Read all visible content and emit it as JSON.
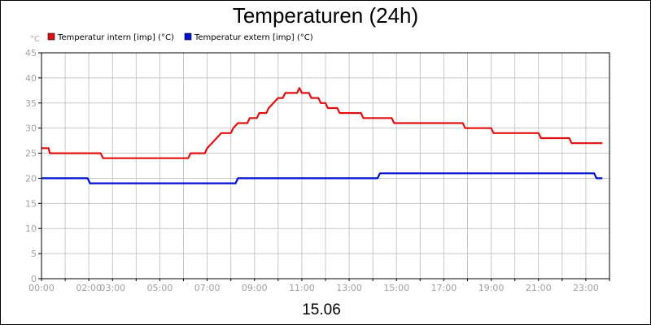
{
  "chart_data": {
    "type": "line",
    "title": "Temperaturen (24h)",
    "ylabel": "°C",
    "xlabel": "15.06",
    "ylim": [
      0,
      45
    ],
    "y_ticks": [
      "0",
      "5",
      "10",
      "15",
      "20",
      "25",
      "30",
      "35",
      "40",
      "45"
    ],
    "x_tick_labels": [
      "00:00",
      "02:00",
      "03:00",
      "05:00",
      "07:00",
      "09:00",
      "11:00",
      "13:00",
      "15:00",
      "17:00",
      "19:00",
      "21:00",
      "23:00"
    ],
    "x_tick_hours": [
      0,
      2,
      3,
      5,
      7,
      9,
      11,
      13,
      15,
      17,
      19,
      21,
      23
    ],
    "x_range_hours": [
      0,
      24
    ],
    "grid": true,
    "legend_position": "top-left",
    "series": [
      {
        "name": "Temperatur intern [imp] (°C)",
        "color": "#e01010",
        "points": [
          [
            0,
            26
          ],
          [
            0.3,
            26
          ],
          [
            0.35,
            25
          ],
          [
            2.5,
            25
          ],
          [
            2.6,
            24
          ],
          [
            6.2,
            24
          ],
          [
            6.3,
            25
          ],
          [
            6.9,
            25
          ],
          [
            7.0,
            26
          ],
          [
            7.2,
            27
          ],
          [
            7.4,
            28
          ],
          [
            7.6,
            29
          ],
          [
            8.0,
            29
          ],
          [
            8.1,
            30
          ],
          [
            8.3,
            31
          ],
          [
            8.7,
            31
          ],
          [
            8.8,
            32
          ],
          [
            9.1,
            32
          ],
          [
            9.2,
            33
          ],
          [
            9.5,
            33
          ],
          [
            9.6,
            34
          ],
          [
            9.8,
            35
          ],
          [
            10.0,
            36
          ],
          [
            10.2,
            36
          ],
          [
            10.3,
            37
          ],
          [
            10.8,
            37
          ],
          [
            10.9,
            38
          ],
          [
            11.0,
            37
          ],
          [
            11.3,
            37
          ],
          [
            11.4,
            36
          ],
          [
            11.7,
            36
          ],
          [
            11.8,
            35
          ],
          [
            12.0,
            35
          ],
          [
            12.1,
            34
          ],
          [
            12.5,
            34
          ],
          [
            12.6,
            33
          ],
          [
            13.5,
            33
          ],
          [
            13.6,
            32
          ],
          [
            14.8,
            32
          ],
          [
            14.9,
            31
          ],
          [
            17.8,
            31
          ],
          [
            17.9,
            30
          ],
          [
            19.0,
            30
          ],
          [
            19.1,
            29
          ],
          [
            21.0,
            29
          ],
          [
            21.1,
            28
          ],
          [
            22.3,
            28
          ],
          [
            22.4,
            27
          ],
          [
            23.7,
            27
          ]
        ]
      },
      {
        "name": "Temperatur extern [imp] (°C)",
        "color": "#0010d0",
        "points": [
          [
            0,
            20
          ],
          [
            1.95,
            20
          ],
          [
            2.05,
            19
          ],
          [
            8.2,
            19
          ],
          [
            8.3,
            20
          ],
          [
            14.2,
            20
          ],
          [
            14.3,
            21
          ],
          [
            23.35,
            21
          ],
          [
            23.45,
            20
          ],
          [
            23.7,
            20
          ]
        ]
      }
    ]
  }
}
